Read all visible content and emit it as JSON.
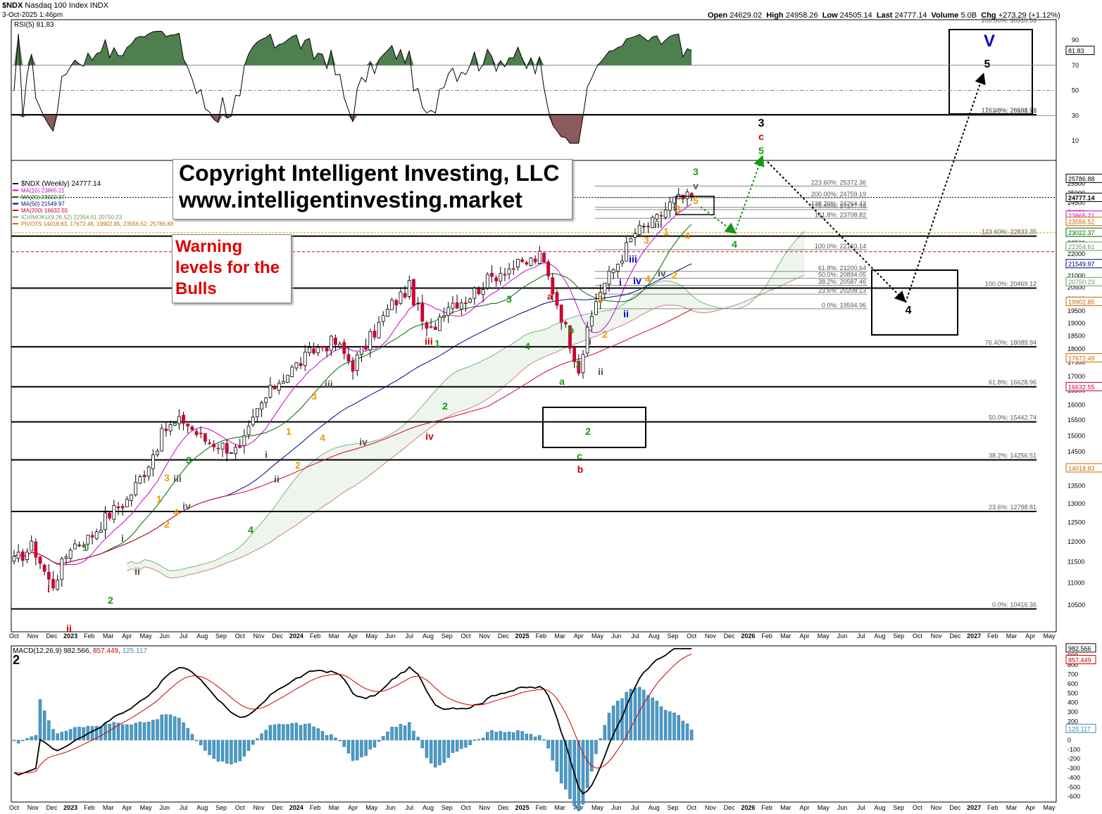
{
  "header": {
    "symbol": "$NDX",
    "name": "Nasdaq 100 Index",
    "exchange": "INDX",
    "date": "3-Oct-2025 1:46pm",
    "open_label": "Open",
    "open": "24629.02",
    "high_label": "High",
    "high": "24958.26",
    "low_label": "Low",
    "low": "24505.14",
    "last_label": "Last",
    "last": "24777.14",
    "volume_label": "Volume",
    "volume": "5.0B",
    "chg_label": "Chg",
    "chg": "+273.29 (+1.12%)"
  },
  "rsi": {
    "label": "RSI(5) 81.83",
    "ticks": [
      "90",
      "70",
      "50",
      "30",
      "10"
    ],
    "last_value": "81.83",
    "color_above": "#4f7f4f",
    "color_below": "#8b5a5a"
  },
  "legend": [
    {
      "text": "$NDX (Weekly) 24777.14",
      "color": "#000000"
    },
    {
      "text": "MA(10) 23865.21",
      "color": "#cc00cc"
    },
    {
      "text": "MA(20) 23022.37",
      "color": "#006600"
    },
    {
      "text": "MA(50) 21549.97",
      "color": "#000080"
    },
    {
      "text": "MA(200) 16632.55",
      "color": "#cc0033"
    },
    {
      "text": "ICHIMOKU(9,26,52) 22354.61 20750.23",
      "color": "#669966"
    },
    {
      "text": "PIVOTS 14018.83, 17672.49, 19902.85, 23556.52, 25786.88",
      "color": "#cc6600"
    }
  ],
  "copyright": {
    "line1": "Copyright Intelligent Investing, LLC",
    "line2": "www.intelligentinvesting.market"
  },
  "warning": {
    "text": "Warning\nlevels for the\nBulls"
  },
  "macd": {
    "label_prefix": "MACD(12,26,9)",
    "macd": "982.566",
    "signal": "857.449",
    "hist": "125.117",
    "panel_number": "2",
    "ticks": [
      "900",
      "800",
      "700",
      "600",
      "500",
      "400",
      "300",
      "200",
      "100",
      "0",
      "-100",
      "-200",
      "-300",
      "-400",
      "-500",
      "-600"
    ]
  },
  "price_axis": {
    "ticks": [
      "25500",
      "25000",
      "24500",
      "24000",
      "23500",
      "23000",
      "22500",
      "22000",
      "21500",
      "21000",
      "20500",
      "20000",
      "19500",
      "19000",
      "18500",
      "18000",
      "17500",
      "17000",
      "16500",
      "16000",
      "15500",
      "15000",
      "14500",
      "14000",
      "13500",
      "13000",
      "12500",
      "12000",
      "11500",
      "11000",
      "10500"
    ],
    "badges": [
      {
        "text": "25786.88",
        "color": "#000000"
      },
      {
        "text": "24777.14",
        "color": "#000000"
      },
      {
        "text": "23865.21",
        "color": "#cc00cc"
      },
      {
        "text": "23556.52",
        "color": "#cc6600"
      },
      {
        "text": "23022.37",
        "color": "#006600"
      },
      {
        "text": "22354.61",
        "color": "#669966"
      },
      {
        "text": "21549.97",
        "color": "#000080"
      },
      {
        "text": "20750.23",
        "color": "#669966"
      },
      {
        "text": "19902.85",
        "color": "#cc6600"
      },
      {
        "text": "17672.49",
        "color": "#cc6600"
      },
      {
        "text": "16632.55",
        "color": "#cc0033"
      },
      {
        "text": "14018.83",
        "color": "#cc6600"
      }
    ]
  },
  "time_axis": {
    "labels": [
      "Oct",
      "Nov",
      "Dec",
      "2023",
      "Feb",
      "Mar",
      "Apr",
      "May",
      "Jun",
      "Jul",
      "Aug",
      "Sep",
      "Oct",
      "Nov",
      "Dec",
      "2024",
      "Feb",
      "Mar",
      "Apr",
      "May",
      "Jun",
      "Jul",
      "Aug",
      "Sep",
      "Oct",
      "Nov",
      "Dec",
      "2025",
      "Feb",
      "Mar",
      "Apr",
      "May",
      "Jun",
      "Jul",
      "Aug",
      "Sep",
      "Oct",
      "Nov",
      "Dec",
      "2026",
      "Feb",
      "Mar",
      "Apr",
      "May",
      "Jun",
      "Jul",
      "Aug",
      "Sep",
      "Oct",
      "Nov",
      "Dec",
      "2027",
      "Feb",
      "Mar",
      "Apr",
      "May"
    ]
  },
  "fib_major": [
    {
      "label": "200.00%: 30510.53"
    },
    {
      "label": "176.40%: 28138.55"
    },
    {
      "label": "161.8%: 26681.72"
    },
    {
      "label": "123.60%: 22833.35"
    },
    {
      "label": "100.0%: 20469.12"
    },
    {
      "label": "76.40%: 18089.94"
    },
    {
      "label": "61.8%: 16628.96"
    },
    {
      "label": "50.0%: 15442.74"
    },
    {
      "label": "38.2%: 14256.51"
    },
    {
      "label": "23.6%: 12788.81"
    },
    {
      "label": "0.0%: 10416.36"
    }
  ],
  "fib_minor": [
    {
      "label": "223.60%: 25372.36"
    },
    {
      "label": "200.00%: 24759.19"
    },
    {
      "label": "176.40%: 24147.48"
    },
    {
      "label": "138.20%: 24264.43"
    },
    {
      "label": "161.8%: 23708.82"
    },
    {
      "label": "100.0%: 22193.14"
    },
    {
      "label": "61.8%: 21200.64"
    },
    {
      "label": "50.0%: 20894.05"
    },
    {
      "label": "38.2%: 20587.46"
    },
    {
      "label": "23.6%: 20208.13"
    },
    {
      "label": "0.0%: 19594.96"
    }
  ],
  "wave_labels": [
    {
      "t": "i",
      "c": "#cc0000"
    },
    {
      "t": "ii",
      "c": "#cc0000"
    },
    {
      "t": "1",
      "c": "#119911"
    },
    {
      "t": "2",
      "c": "#119911"
    },
    {
      "t": "i",
      "c": "#555555"
    },
    {
      "t": "ii",
      "c": "#555555"
    },
    {
      "t": "1",
      "c": "#ee9900"
    },
    {
      "t": "2",
      "c": "#ee9900"
    },
    {
      "t": "3",
      "c": "#ee9900"
    },
    {
      "t": "4",
      "c": "#ee9900"
    },
    {
      "t": "iii",
      "c": "#555555"
    },
    {
      "t": "iv",
      "c": "#555555"
    },
    {
      "t": "3",
      "c": "#119911"
    },
    {
      "t": "4",
      "c": "#119911"
    },
    {
      "t": "i",
      "c": "#555555"
    },
    {
      "t": "ii",
      "c": "#555555"
    },
    {
      "t": "1",
      "c": "#ee9900"
    },
    {
      "t": "2",
      "c": "#ee9900"
    },
    {
      "t": "3",
      "c": "#ee9900"
    },
    {
      "t": "4",
      "c": "#ee9900"
    },
    {
      "t": "iii",
      "c": "#555555"
    },
    {
      "t": "iv",
      "c": "#555555"
    },
    {
      "t": "iii",
      "c": "#cc0000"
    },
    {
      "t": "iv",
      "c": "#cc0000"
    },
    {
      "t": "1",
      "c": "#119911"
    },
    {
      "t": "2",
      "c": "#119911"
    },
    {
      "t": "3",
      "c": "#119911"
    },
    {
      "t": "4",
      "c": "#119911"
    },
    {
      "t": "a",
      "c": "#cc0000"
    },
    {
      "t": "b",
      "c": "#119911"
    },
    {
      "t": "a",
      "c": "#119911"
    },
    {
      "t": "c",
      "c": "#119911"
    },
    {
      "t": "b",
      "c": "#cc0000"
    },
    {
      "t": "1",
      "c": "#119911"
    },
    {
      "t": "2",
      "c": "#119911"
    },
    {
      "t": "i",
      "c": "#555555"
    },
    {
      "t": "ii",
      "c": "#555555"
    },
    {
      "t": "1",
      "c": "#ee9900"
    },
    {
      "t": "2",
      "c": "#ee9900"
    },
    {
      "t": "i",
      "c": "#0000cc"
    },
    {
      "t": "ii",
      "c": "#0000cc"
    },
    {
      "t": "iii",
      "c": "#0000cc"
    },
    {
      "t": "iv",
      "c": "#0000cc"
    },
    {
      "t": "3",
      "c": "#ee9900"
    },
    {
      "t": "4",
      "c": "#ee9900"
    },
    {
      "t": "iii",
      "c": "#555555"
    },
    {
      "t": "iv",
      "c": "#555555"
    },
    {
      "t": "1",
      "c": "#ee9900"
    },
    {
      "t": "2",
      "c": "#ee9900"
    },
    {
      "t": "3",
      "c": "#ee9900"
    },
    {
      "t": "4",
      "c": "#ee9900"
    },
    {
      "t": "5",
      "c": "#ee9900"
    },
    {
      "t": "v",
      "c": "#555555"
    },
    {
      "t": "3",
      "c": "#119911"
    },
    {
      "t": "4",
      "c": "#119911"
    },
    {
      "t": "5",
      "c": "#119911"
    },
    {
      "t": "c",
      "c": "#cc0000"
    },
    {
      "t": "3",
      "c": "#000000"
    },
    {
      "t": "4",
      "c": "#000000"
    },
    {
      "t": "5",
      "c": "#000000"
    },
    {
      "t": "V",
      "c": "#0000cc"
    }
  ],
  "chart_data": {
    "type": "candlestick",
    "frequency": "weekly",
    "symbol": "$NDX",
    "x_range": [
      "2022-10",
      "2027-05"
    ],
    "ylim": [
      10000,
      26000
    ],
    "anchors": [
      {
        "date": "2022-10",
        "close": 11500
      },
      {
        "date": "2022-11",
        "close": 11900
      },
      {
        "date": "2022-12",
        "close": 10900
      },
      {
        "date": "2023-01",
        "close": 11900
      },
      {
        "date": "2023-02",
        "close": 12100
      },
      {
        "date": "2023-03",
        "close": 12700
      },
      {
        "date": "2023-04",
        "close": 13100
      },
      {
        "date": "2023-05",
        "close": 14000
      },
      {
        "date": "2023-06",
        "close": 15200
      },
      {
        "date": "2023-07",
        "close": 15500
      },
      {
        "date": "2023-08",
        "close": 14900
      },
      {
        "date": "2023-09",
        "close": 14700
      },
      {
        "date": "2023-10",
        "close": 14500
      },
      {
        "date": "2023-11",
        "close": 15900
      },
      {
        "date": "2023-12",
        "close": 16800
      },
      {
        "date": "2024-01",
        "close": 17400
      },
      {
        "date": "2024-02",
        "close": 18000
      },
      {
        "date": "2024-03",
        "close": 18300
      },
      {
        "date": "2024-04",
        "close": 17400
      },
      {
        "date": "2024-05",
        "close": 18500
      },
      {
        "date": "2024-06",
        "close": 19700
      },
      {
        "date": "2024-07",
        "close": 20500
      },
      {
        "date": "2024-08",
        "close": 18500
      },
      {
        "date": "2024-09",
        "close": 19800
      },
      {
        "date": "2024-10",
        "close": 20000
      },
      {
        "date": "2024-11",
        "close": 20700
      },
      {
        "date": "2024-12",
        "close": 21300
      },
      {
        "date": "2025-01",
        "close": 21500
      },
      {
        "date": "2025-02",
        "close": 21900
      },
      {
        "date": "2025-03",
        "close": 19500
      },
      {
        "date": "2025-04",
        "close": 17300
      },
      {
        "date": "2025-05",
        "close": 20200
      },
      {
        "date": "2025-06",
        "close": 21500
      },
      {
        "date": "2025-07",
        "close": 23000
      },
      {
        "date": "2025-08",
        "close": 23500
      },
      {
        "date": "2025-09",
        "close": 24600
      },
      {
        "date": "2025-10",
        "close": 24777.14
      }
    ],
    "moving_averages": {
      "MA10": 23865.21,
      "MA20": 23022.37,
      "MA50": 21549.97,
      "MA200": 16632.55
    },
    "ichimoku": {
      "span_a": 22354.61,
      "span_b": 20750.23
    },
    "pivots": [
      14018.83,
      17672.49,
      19902.85,
      23556.52,
      25786.88
    ],
    "fib_major_levels": [
      30510.53,
      28138.55,
      26681.72,
      22833.35,
      20469.12,
      18089.94,
      16628.96,
      15442.74,
      14256.51,
      12788.81,
      10416.36
    ],
    "fib_minor_levels": [
      25372.36,
      24759.19,
      24147.48,
      24264.43,
      23708.82,
      22193.14,
      21200.64,
      20894.05,
      20587.46,
      20208.13,
      19594.96
    ],
    "projection": [
      {
        "label": "4",
        "date": "2025-11",
        "value": 24000
      },
      {
        "label": "5",
        "date": "2026-01",
        "value": 26600
      },
      {
        "label": "4",
        "date": "2026-09",
        "value": 21700
      },
      {
        "label": "5",
        "date": "2026-12",
        "value": 28600
      }
    ],
    "rsi_last": 81.83,
    "macd_last": {
      "macd": 982.566,
      "signal": 857.449,
      "hist": 125.117
    }
  }
}
